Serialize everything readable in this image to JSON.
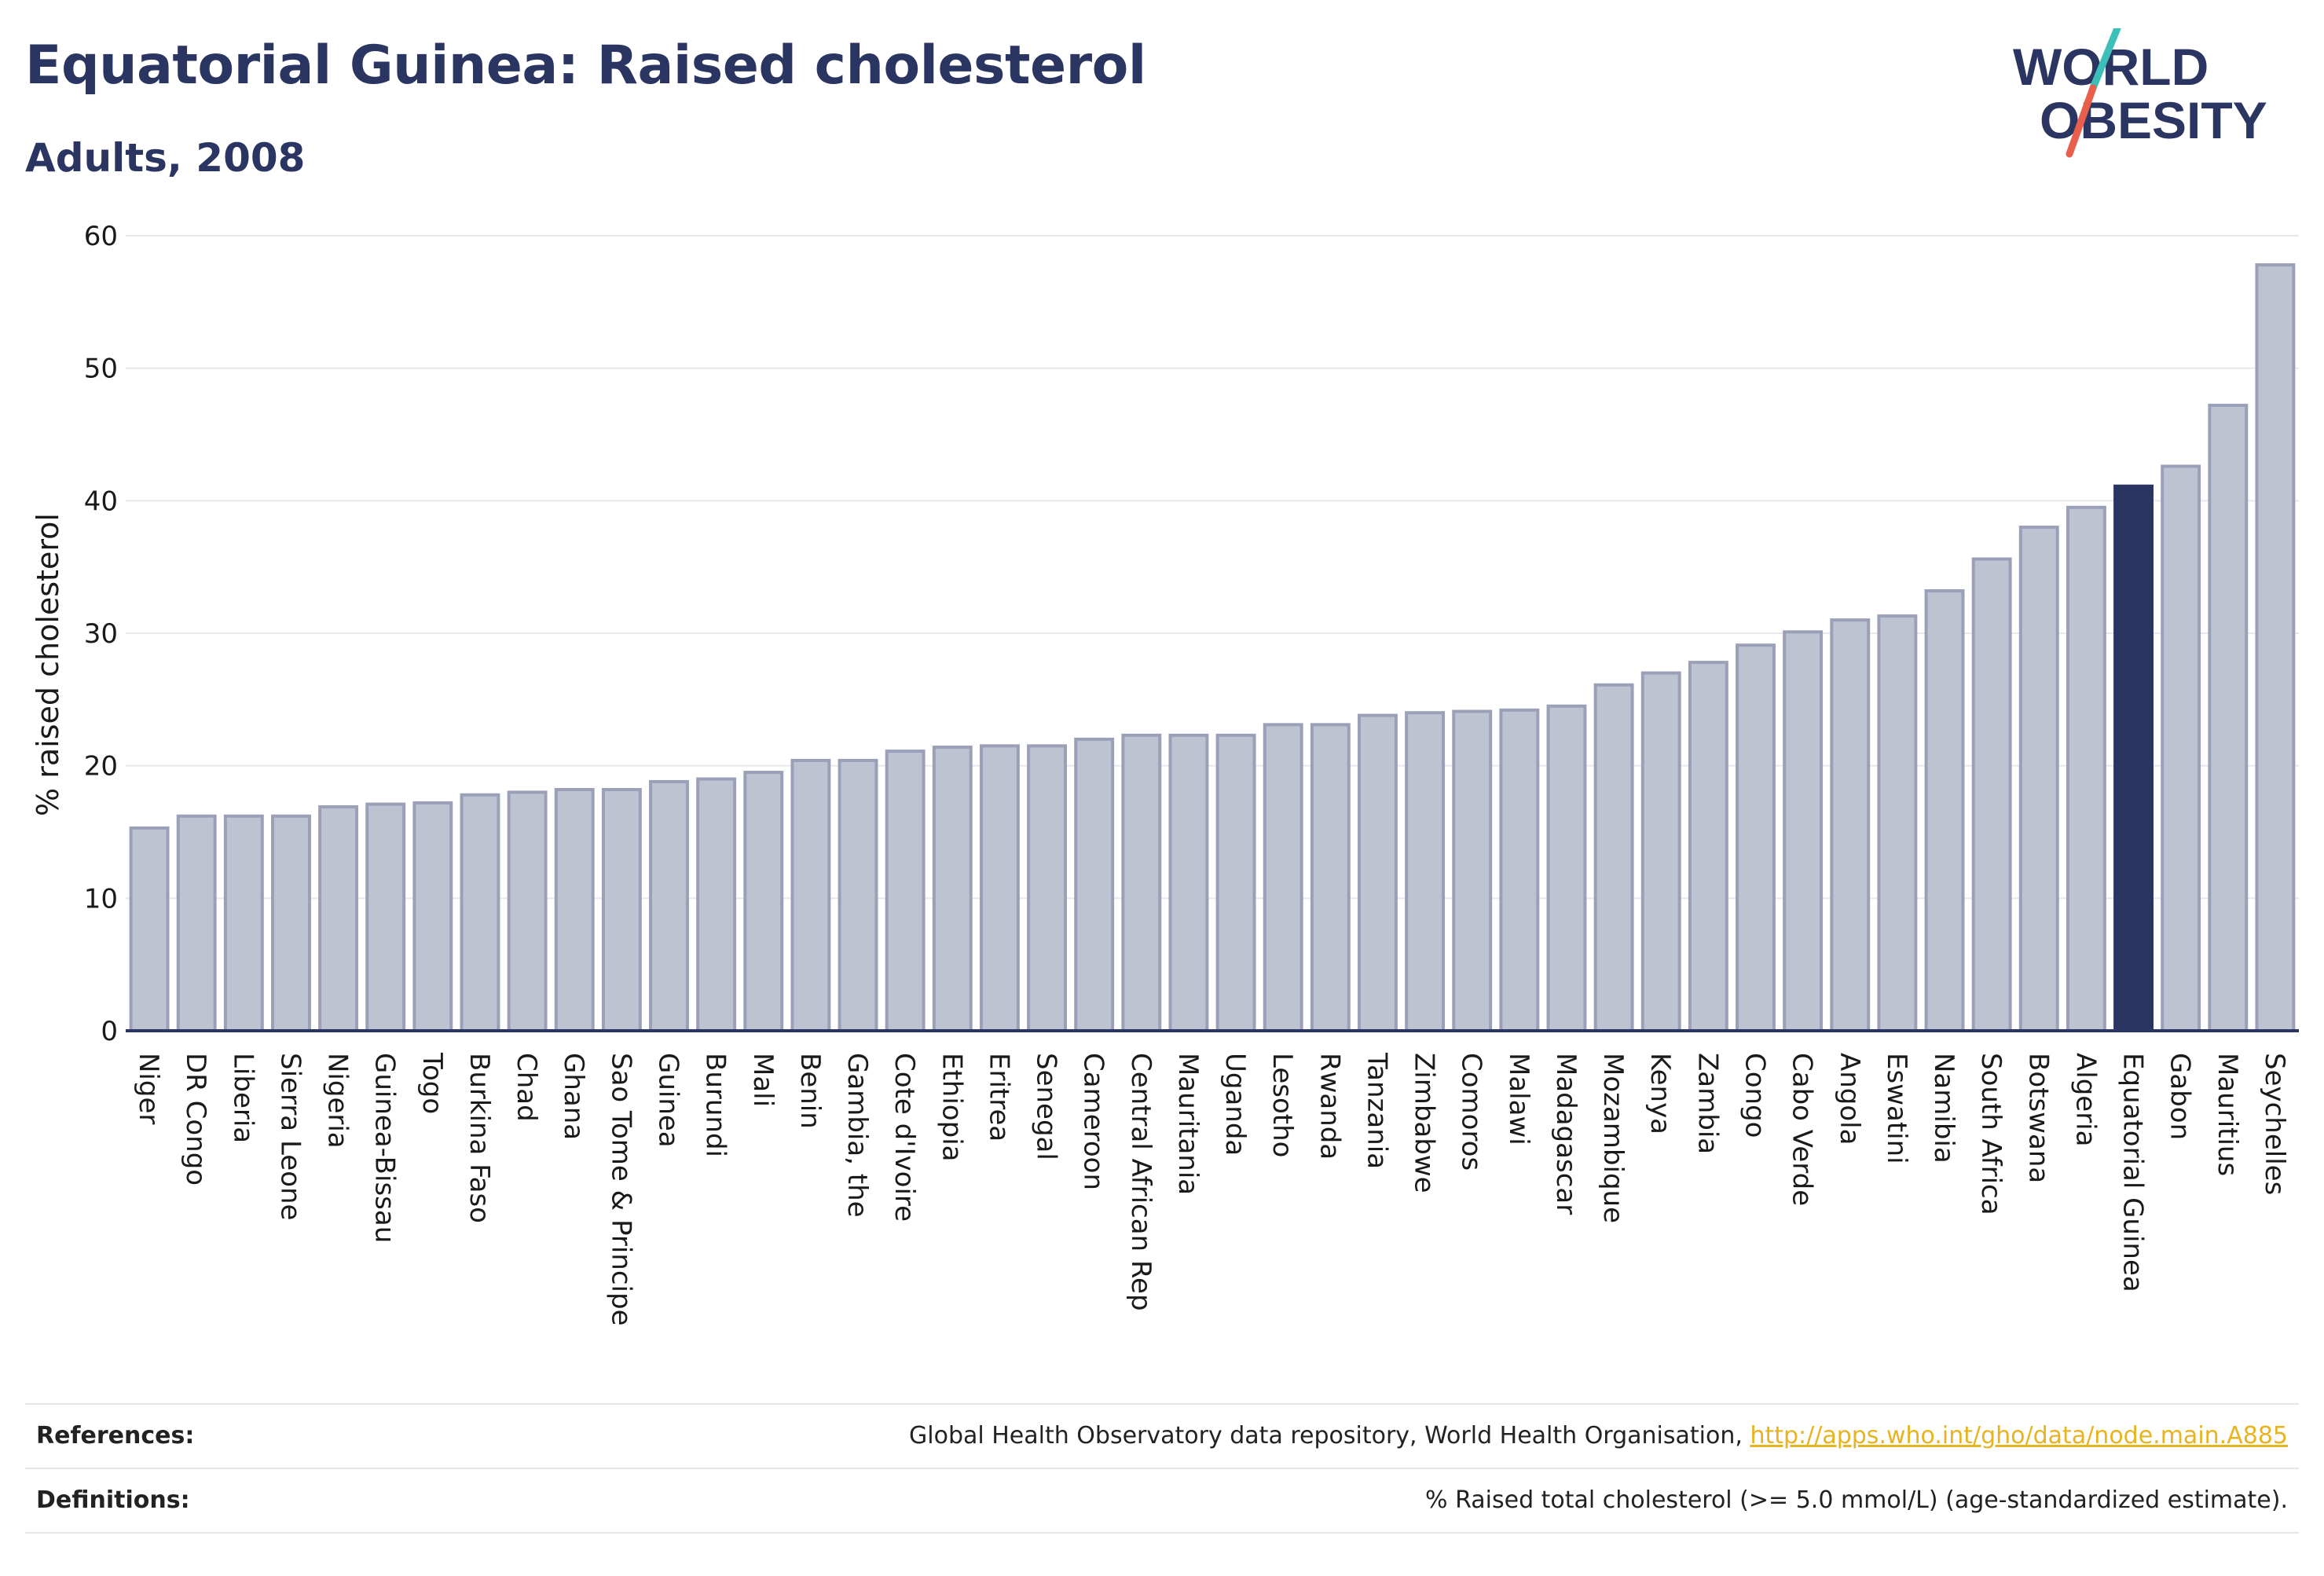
{
  "header": {
    "title": "Equatorial Guinea: Raised cholesterol",
    "subtitle": "Adults, 2008"
  },
  "logo": {
    "line1": "WORLD",
    "line2": "OBESITY",
    "colors": {
      "text": "#2b3561",
      "slash_top": "#3bbfb8",
      "slash_bottom": "#e8604c"
    }
  },
  "colors": {
    "bar": "#bec3d1",
    "bar_edge": "#99a0b8",
    "highlight": "#2b3561",
    "gridline": "#e8e8ee",
    "axis": "#2b3561",
    "link": "#e8b320"
  },
  "chart_data": {
    "type": "bar",
    "title": "",
    "xlabel": "",
    "ylabel": "% raised cholesterol",
    "ylim": [
      0,
      60
    ],
    "yticks": [
      0,
      10,
      20,
      30,
      40,
      50,
      60
    ],
    "grid": true,
    "legend": "none",
    "highlight_category": "Equatorial Guinea",
    "categories": [
      "Niger",
      "DR Congo",
      "Liberia",
      "Sierra Leone",
      "Nigeria",
      "Guinea-Bissau",
      "Togo",
      "Burkina Faso",
      "Chad",
      "Ghana",
      "Sao Tome & Principe",
      "Guinea",
      "Burundi",
      "Mali",
      "Benin",
      "Gambia, the",
      "Cote d'Ivoire",
      "Ethiopia",
      "Eritrea",
      "Senegal",
      "Cameroon",
      "Central African Rep",
      "Mauritania",
      "Uganda",
      "Lesotho",
      "Rwanda",
      "Tanzania",
      "Zimbabwe",
      "Comoros",
      "Malawi",
      "Madagascar",
      "Mozambique",
      "Kenya",
      "Zambia",
      "Congo",
      "Cabo Verde",
      "Angola",
      "Eswatini",
      "Namibia",
      "South Africa",
      "Botswana",
      "Algeria",
      "Equatorial Guinea",
      "Gabon",
      "Mauritius",
      "Seychelles"
    ],
    "values": [
      15.3,
      16.2,
      16.2,
      16.2,
      16.9,
      17.1,
      17.2,
      17.8,
      18.0,
      18.2,
      18.2,
      18.8,
      19.0,
      19.5,
      20.4,
      20.4,
      21.1,
      21.4,
      21.5,
      21.5,
      22.0,
      22.3,
      22.3,
      22.3,
      23.1,
      23.1,
      23.8,
      24.0,
      24.1,
      24.2,
      24.5,
      26.1,
      27.0,
      27.8,
      29.1,
      30.1,
      31.0,
      31.3,
      33.2,
      35.6,
      38.0,
      39.5,
      41.1,
      42.6,
      47.2,
      57.8
    ]
  },
  "footer": {
    "references_label": "References:",
    "references_text": "Global Health Observatory data repository, World Health Organisation, ",
    "references_link": "http://apps.who.int/gho/data/node.main.A885",
    "definitions_label": "Definitions:",
    "definitions_text": "% Raised total cholesterol (>= 5.0 mmol/L) (age-standardized estimate)."
  }
}
